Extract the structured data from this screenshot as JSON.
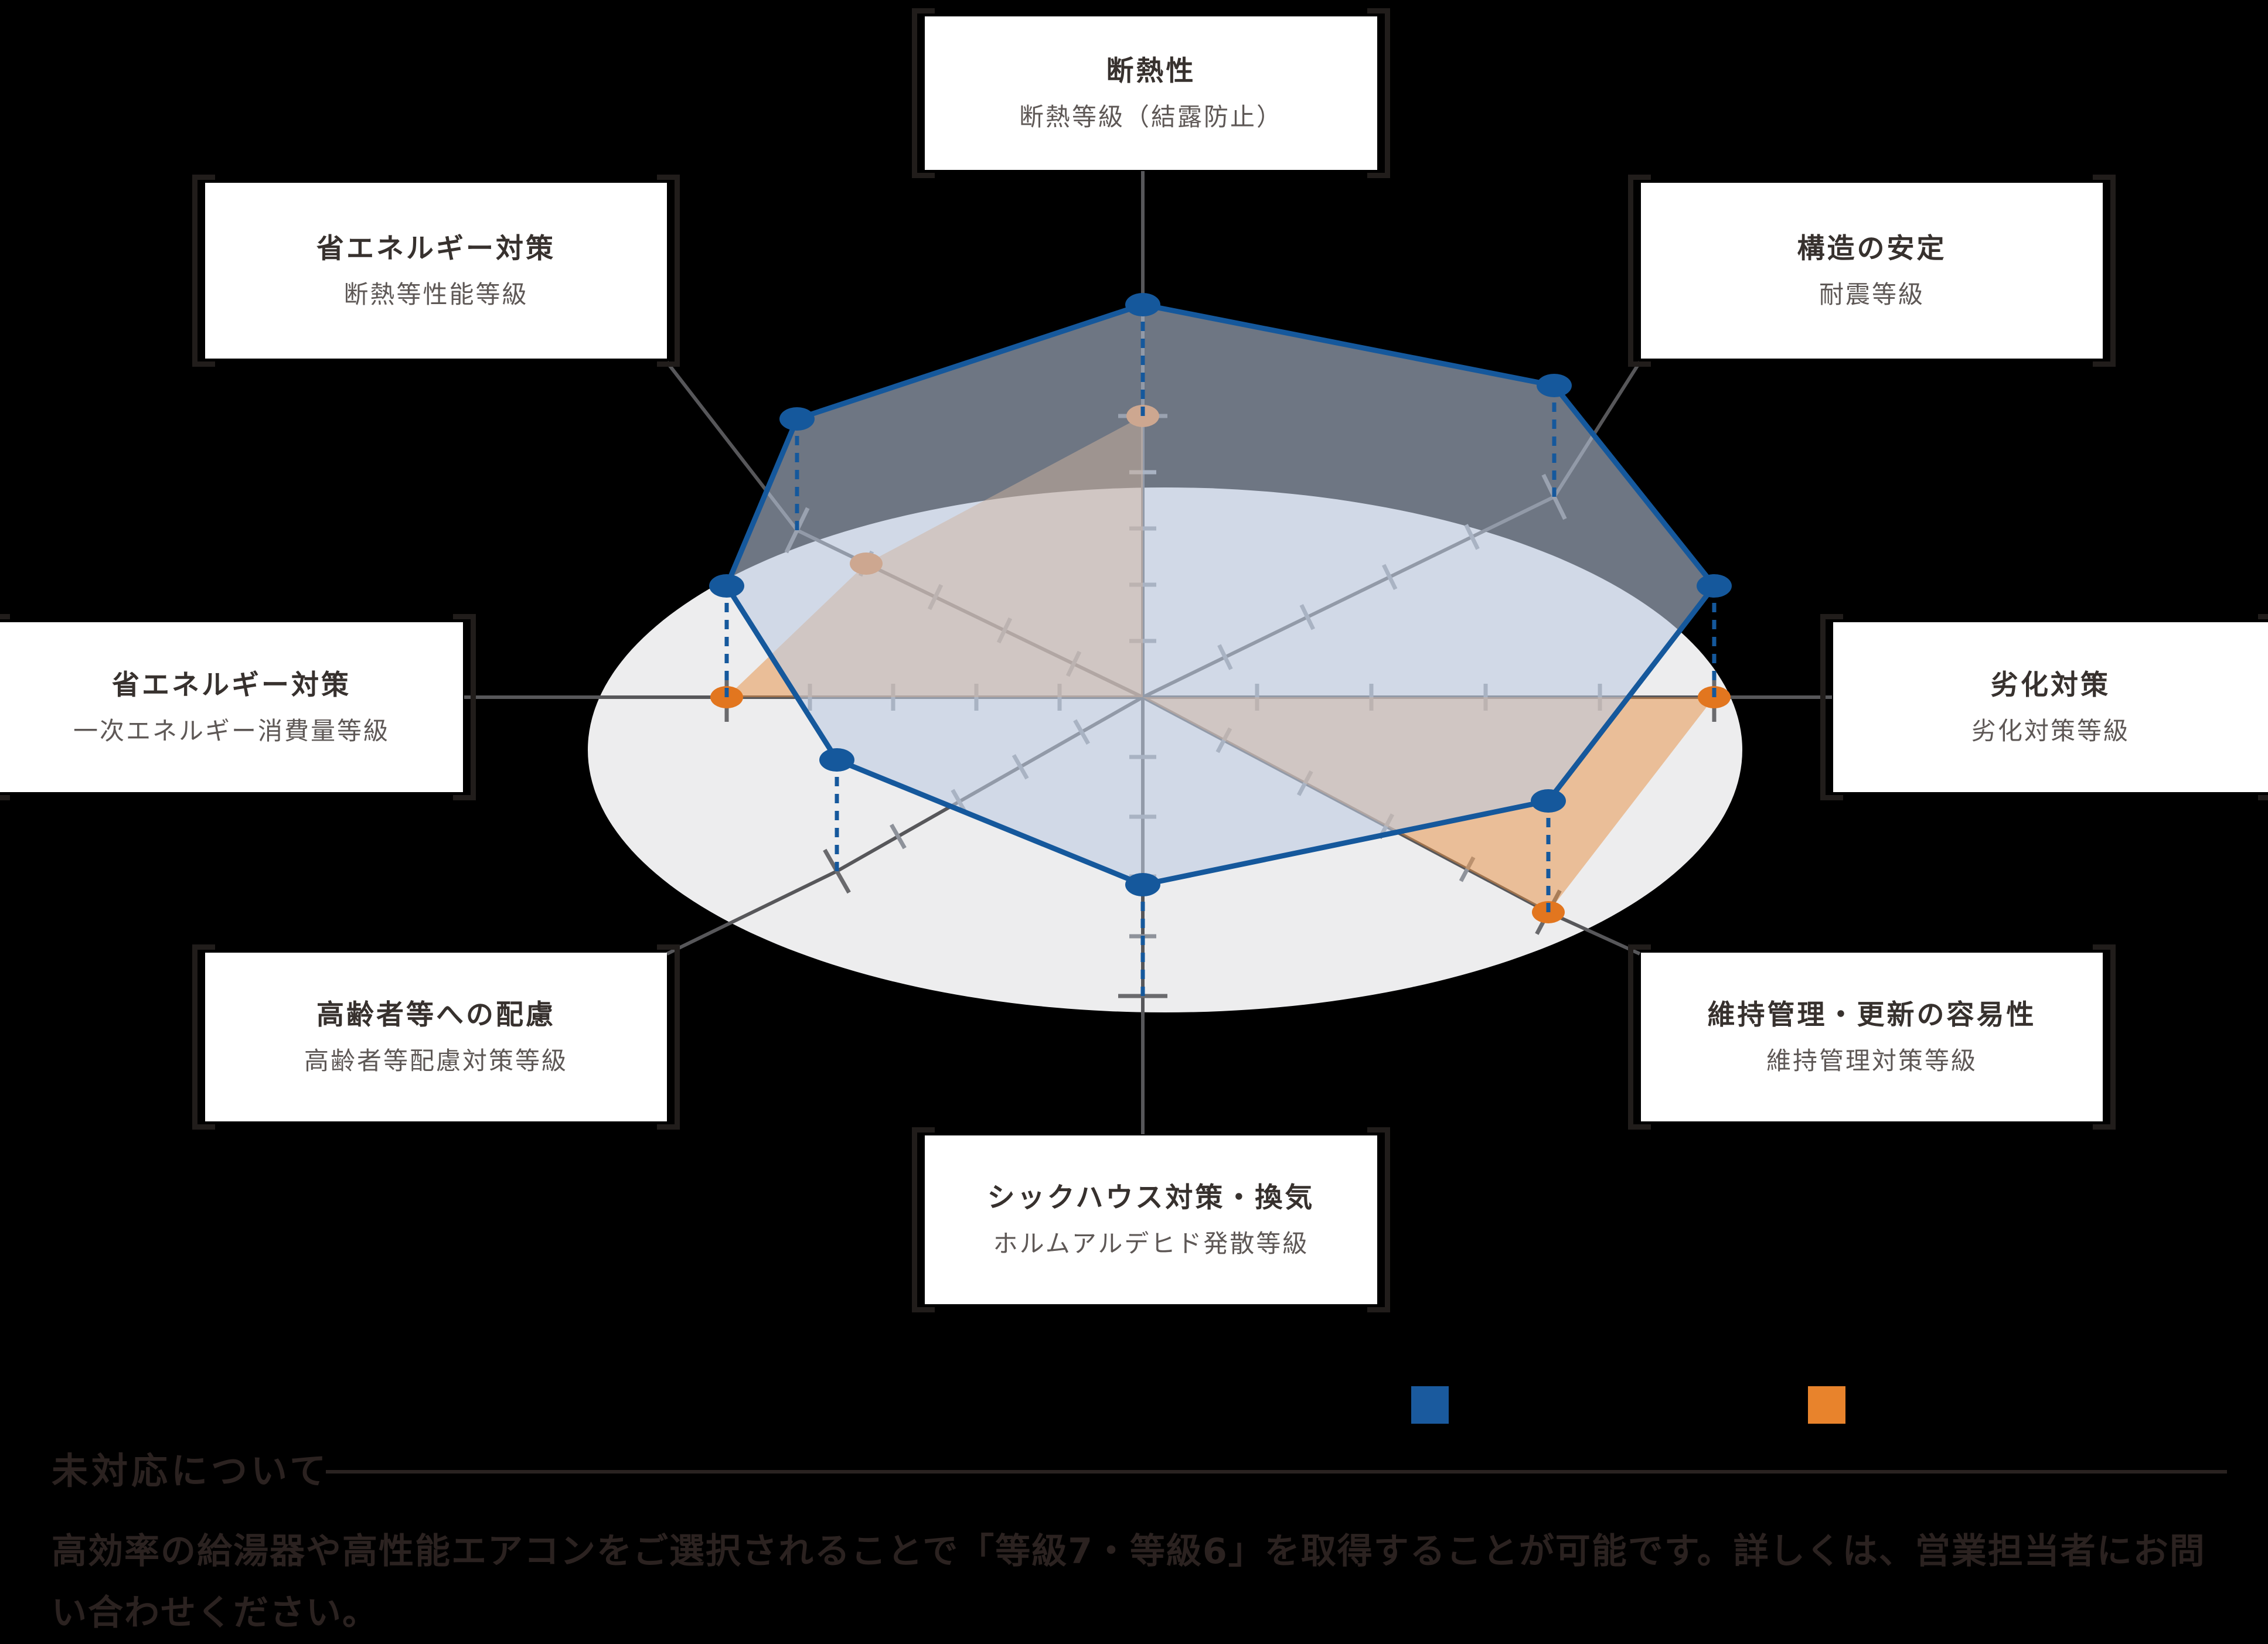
{
  "page": {
    "background": "#000000"
  },
  "heading": {
    "title": "未対応について"
  },
  "note": {
    "text": "高効率の給湯器や高性能エアコンをご選択されることで「等級7・等級6」を取得することが可能です。詳しくは、営業担当者にお問い合わせください。"
  },
  "legend": {
    "items": [
      {
        "id": "series-blue",
        "color": "#1a5a9e"
      },
      {
        "id": "series-orange",
        "color": "#e8832c"
      }
    ]
  },
  "chart_data": {
    "type": "radar",
    "style": "pseudo-3d-tilted-plane",
    "scale": {
      "min": 0,
      "max": 5
    },
    "grid": {
      "ticks_per_axis": 5,
      "disc_color": "#ededee"
    },
    "axes": [
      {
        "id": "top",
        "title": "断熱性",
        "subtitle": "断熱等級（結露防止）"
      },
      {
        "id": "top-right",
        "title": "構造の安定",
        "subtitle": "耐震等級"
      },
      {
        "id": "right",
        "title": "劣化対策",
        "subtitle": "劣化対策等級"
      },
      {
        "id": "bottom-right",
        "title": "維持管理・更新の容易性",
        "subtitle": "維持管理対策等級"
      },
      {
        "id": "bottom",
        "title": "シックハウス対策・換気",
        "subtitle": "ホルムアルデヒド発散等級"
      },
      {
        "id": "bottom-left",
        "title": "高齢者等への配慮",
        "subtitle": "高齢者等配慮対策等級"
      },
      {
        "id": "left",
        "title": "省エネルギー対策",
        "subtitle": "一次エネルギー消費量等級"
      },
      {
        "id": "top-left",
        "title": "省エネルギー対策",
        "subtitle": "断熱等性能等級"
      }
    ],
    "series": [
      {
        "id": "blue",
        "color": "#15589c",
        "fill": "rgba(190,204,226,0.58)",
        "values": [
          5,
          5,
          5,
          5,
          5,
          5,
          5,
          5
        ]
      },
      {
        "id": "orange",
        "color": "#e2761f",
        "fill": "rgba(232,144,66,0.5)",
        "values": [
          5,
          0,
          5,
          5,
          0,
          0,
          5,
          4
        ]
      }
    ],
    "legend_position": "bottom-right-above-note"
  }
}
